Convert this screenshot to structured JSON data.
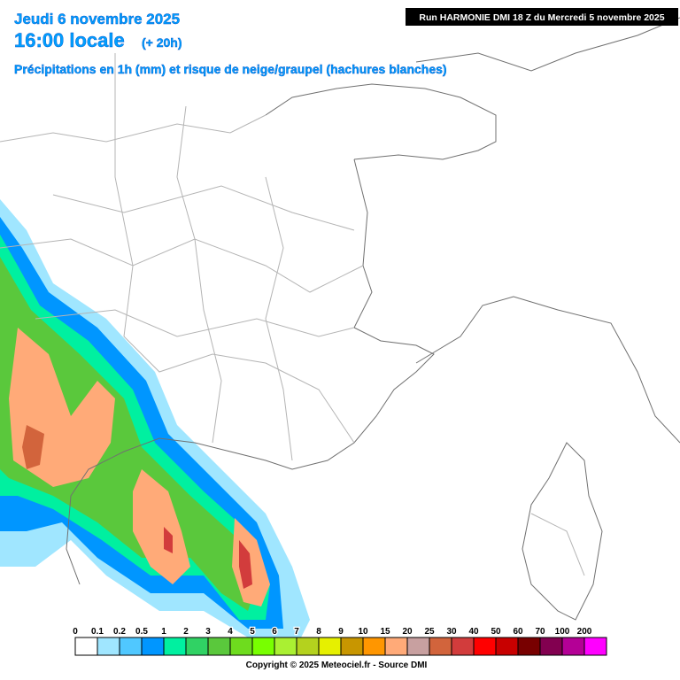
{
  "header": {
    "date": "Jeudi 6 novembre 2025",
    "time": "16:00 locale",
    "offset": "(+ 20h)",
    "subtitle": "Précipitations en 1h (mm) et risque de neige/graupel (hachures blanches)",
    "run": "Run HARMONIE DMI 18 Z du Mercredi 5 novembre 2025"
  },
  "legend": {
    "items": [
      {
        "label": "0",
        "color": "#ffffff"
      },
      {
        "label": "0.1",
        "color": "#a0e6ff"
      },
      {
        "label": "0.2",
        "color": "#50c8ff"
      },
      {
        "label": "0.5",
        "color": "#0096ff"
      },
      {
        "label": "1",
        "color": "#00f0a0"
      },
      {
        "label": "2",
        "color": "#30d264"
      },
      {
        "label": "3",
        "color": "#5ac83c"
      },
      {
        "label": "4",
        "color": "#6edc1e"
      },
      {
        "label": "5",
        "color": "#78ff00"
      },
      {
        "label": "6",
        "color": "#aaf032"
      },
      {
        "label": "7",
        "color": "#b4d21e"
      },
      {
        "label": "8",
        "color": "#e6f000"
      },
      {
        "label": "9",
        "color": "#c89600"
      },
      {
        "label": "10",
        "color": "#ff9600"
      },
      {
        "label": "15",
        "color": "#ffaa78"
      },
      {
        "label": "20",
        "color": "#c8a0a0"
      },
      {
        "label": "25",
        "color": "#d2643c"
      },
      {
        "label": "30",
        "color": "#d23c3c"
      },
      {
        "label": "40",
        "color": "#ff0000"
      },
      {
        "label": "50",
        "color": "#c80000"
      },
      {
        "label": "60",
        "color": "#780000"
      },
      {
        "label": "70",
        "color": "#820050"
      },
      {
        "label": "100",
        "color": "#b40096"
      },
      {
        "label": "200",
        "color": "#ff00ff"
      }
    ]
  },
  "footer": {
    "copyright": "Copyright © 2025 Meteociel.fr - Source DMI"
  }
}
